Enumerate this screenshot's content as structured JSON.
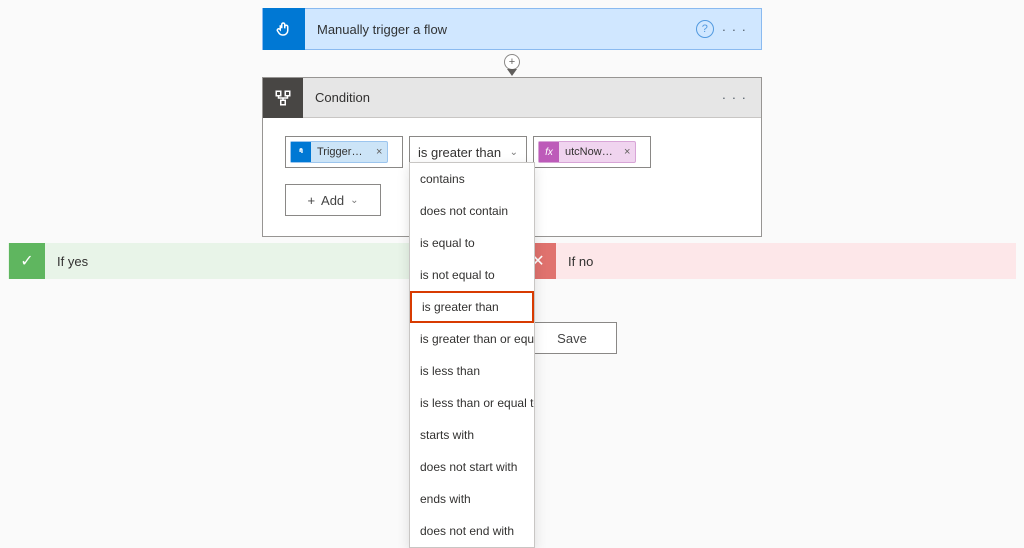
{
  "trigger": {
    "title": "Manually trigger a flow",
    "icon": "touch-icon",
    "bg_color": "#0078d4",
    "card_bg": "#d0e7ff"
  },
  "condition": {
    "title": "Condition",
    "icon": "branch-icon",
    "left_token": {
      "label": "Trigger d...",
      "type": "trigger",
      "color": "#cce4f7"
    },
    "operator_selected": "is greater than",
    "right_token": {
      "label": "utcNow(...)",
      "type": "expression",
      "color": "#f0d4ef"
    },
    "add_label": "Add"
  },
  "operator_options": [
    "contains",
    "does not contain",
    "is equal to",
    "is not equal to",
    "is greater than",
    "is greater than or equal to",
    "is less than",
    "is less than or equal to",
    "starts with",
    "does not start with",
    "ends with",
    "does not end with"
  ],
  "operator_highlight_index": 4,
  "branches": {
    "yes_label": "If yes",
    "no_label": "If no",
    "yes_color": "#e8f4e8",
    "no_color": "#fde7e9"
  },
  "buttons": {
    "save": "Save"
  },
  "glyphs": {
    "help": "?",
    "ellipsis": "· · ·",
    "plus": "+",
    "chevron_down": "⌄",
    "check": "✓",
    "cross": "✕",
    "x": "×",
    "fx": "fx"
  },
  "colors": {
    "highlight_border": "#d83b01",
    "card_border": "#979593"
  }
}
